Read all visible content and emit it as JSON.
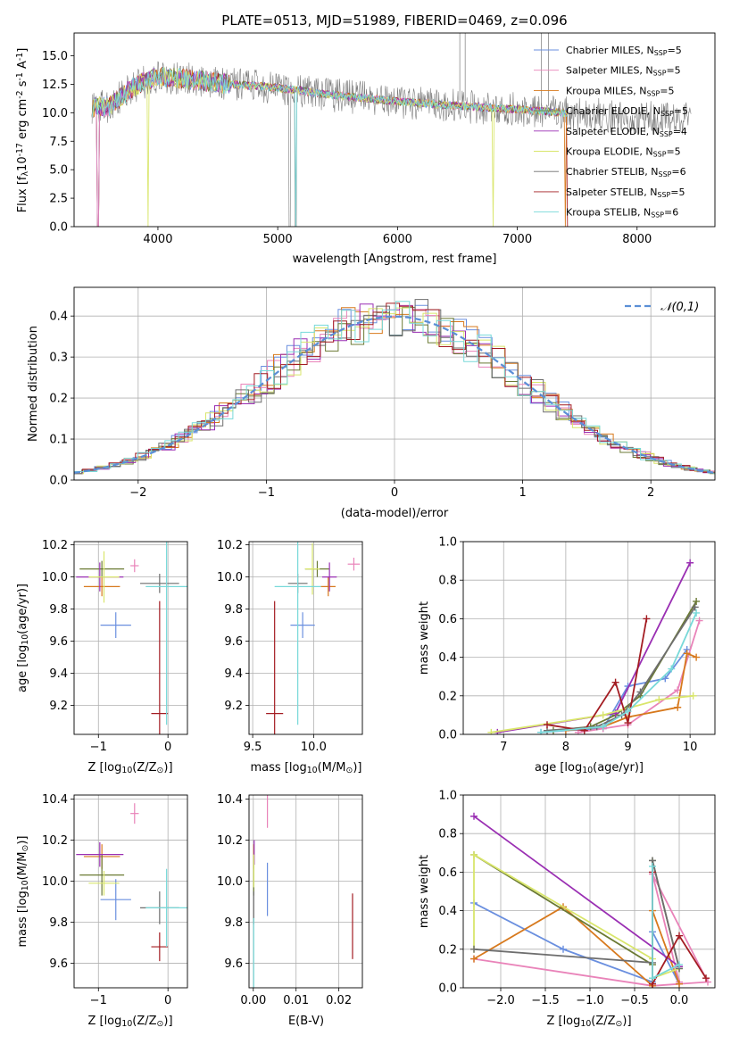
{
  "colors": [
    "#6a8fdf",
    "#e983b9",
    "#d7791d",
    "#6b7a34",
    "#9a2fb3",
    "#d9e66b",
    "#6e6e6e",
    "#a31c22",
    "#78d9d9"
  ],
  "chart_data": [
    {
      "id": "spectrum",
      "type": "line",
      "title": "PLATE=0513, MJD=51989, FIBERID=0469, z=0.096",
      "xlabel": "wavelength [Angstrom, rest frame]",
      "ylabel": "Flux [f$_{\\lambda}$10$^{-17}$ erg cm$^{-2}$ s$^{-1}$ A$^{-1}$]",
      "xlim": [
        3300,
        8650
      ],
      "ylim": [
        0,
        17
      ],
      "xticks": [
        "4000",
        "5000",
        "6000",
        "7000",
        "8000"
      ],
      "xtick_values": [
        4000,
        5000,
        6000,
        7000,
        8000
      ],
      "yticks": [
        "0.0",
        "2.5",
        "5.0",
        "7.5",
        "10.0",
        "12.5",
        "15.0"
      ],
      "ytick_values": [
        0,
        2.5,
        5,
        7.5,
        10,
        12.5,
        15
      ],
      "legend_position": "upper right",
      "legend": [
        {
          "label": "Chabrier MILES, N$_{SSP}$=5"
        },
        {
          "label": "Salpeter MILES, N$_{SSP}$=5"
        },
        {
          "label": "Kroupa MILES, N$_{SSP}$=5"
        },
        {
          "label": "Chabrier ELODIE, N$_{SSP}$=5"
        },
        {
          "label": "Salpeter ELODIE, N$_{SSP}$=4"
        },
        {
          "label": "Kroupa ELODIE, N$_{SSP}$=5"
        },
        {
          "label": "Chabrier STELIB, N$_{SSP}$=6"
        },
        {
          "label": "Salpeter STELIB, N$_{SSP}$=5"
        },
        {
          "label": "Kroupa STELIB, N$_{SSP}$=6"
        }
      ],
      "continuum": {
        "x": [
          3450,
          3600,
          3800,
          4000,
          4200,
          4500,
          5000,
          5500,
          6000,
          6500,
          7000,
          7500,
          8000,
          8450
        ],
        "y": [
          10.5,
          10.6,
          12.3,
          13.2,
          13.0,
          12.6,
          12.2,
          11.5,
          11.0,
          10.6,
          10.3,
          9.9,
          9.6,
          9.5
        ]
      }
    },
    {
      "id": "residuals",
      "type": "line",
      "xlabel": "(data-model)/error",
      "ylabel": "Normed distribution",
      "xlim": [
        -2.5,
        2.5
      ],
      "ylim": [
        0,
        0.47
      ],
      "xticks": [
        "−2",
        "−1",
        "0",
        "1",
        "2"
      ],
      "xtick_values": [
        -2,
        -1,
        0,
        1,
        2
      ],
      "yticks": [
        "0.0",
        "0.1",
        "0.2",
        "0.3",
        "0.4"
      ],
      "ytick_values": [
        0,
        0.1,
        0.2,
        0.3,
        0.4
      ],
      "legend_position": "upper right",
      "legend": [
        {
          "label": "$\\mathcal{N}(0,1)$"
        }
      ],
      "grid": true
    },
    {
      "id": "age-vs-Z",
      "type": "scatter",
      "xlabel": "Z [log$_{10}$(Z/Z$_\\odot$)]",
      "ylabel": "age  [log$_{10}$(age/yr)]",
      "xlim": [
        -1.35,
        0.28
      ],
      "ylim": [
        9.02,
        10.22
      ],
      "xticks": [
        "−1",
        "0"
      ],
      "xtick_values": [
        -1,
        0
      ],
      "yticks": [
        "9.2",
        "9.4",
        "9.6",
        "9.8",
        "10.0",
        "10.2"
      ],
      "ytick_values": [
        9.2,
        9.4,
        9.6,
        9.8,
        10.0,
        10.2
      ],
      "grid": true,
      "points": [
        {
          "x": -0.75,
          "y": 9.7,
          "xerr": 0.22,
          "yerr": 0.08
        },
        {
          "x": -0.48,
          "y": 10.07,
          "xerr": 0.06,
          "yerr": 0.04
        },
        {
          "x": -0.95,
          "y": 9.94,
          "xerr": 0.26,
          "yerr": 0.06
        },
        {
          "x": -0.95,
          "y": 10.05,
          "xerr": 0.32,
          "yerr": 0.05
        },
        {
          "x": -0.98,
          "y": 10.0,
          "xerr": 0.34,
          "yerr": 0.09
        },
        {
          "x": -0.92,
          "y": 10.0,
          "xerr": 0.22,
          "yerr": 0.16
        },
        {
          "x": -0.12,
          "y": 9.96,
          "xerr": 0.28,
          "yerr": 0.06
        },
        {
          "x": -0.12,
          "y": 9.15,
          "xerr": 0.12,
          "yerr": 0.7
        },
        {
          "x": -0.02,
          "y": 9.94,
          "xerr": 0.3,
          "yerr": 0.86
        }
      ]
    },
    {
      "id": "age-vs-mass",
      "type": "scatter",
      "xlabel": "mass [log$_{10}$(M/M$_\\odot$)]",
      "ylabel": "",
      "xlim": [
        9.47,
        10.4
      ],
      "ylim": [
        9.02,
        10.22
      ],
      "xticks": [
        "9.5",
        "10.0"
      ],
      "xtick_values": [
        9.5,
        10.0
      ],
      "yticks": [
        "9.2",
        "9.4",
        "9.6",
        "9.8",
        "10.0",
        "10.2"
      ],
      "ytick_values": [
        9.2,
        9.4,
        9.6,
        9.8,
        10.0,
        10.2
      ],
      "grid": true,
      "points": [
        {
          "x": 9.91,
          "y": 9.7,
          "xerr": 0.1,
          "yerr": 0.08
        },
        {
          "x": 10.33,
          "y": 10.08,
          "xerr": 0.05,
          "yerr": 0.04
        },
        {
          "x": 10.12,
          "y": 9.94,
          "xerr": 0.06,
          "yerr": 0.06
        },
        {
          "x": 10.03,
          "y": 10.05,
          "xerr": 0.1,
          "yerr": 0.05
        },
        {
          "x": 10.13,
          "y": 10.0,
          "xerr": 0.06,
          "yerr": 0.09
        },
        {
          "x": 9.99,
          "y": 10.05,
          "xerr": 0.06,
          "yerr": 0.16
        },
        {
          "x": 9.87,
          "y": 9.96,
          "xerr": 0.08,
          "yerr": 0.06
        },
        {
          "x": 9.68,
          "y": 9.15,
          "xerr": 0.07,
          "yerr": 0.7
        },
        {
          "x": 9.87,
          "y": 9.94,
          "xerr": 0.19,
          "yerr": 0.86
        }
      ]
    },
    {
      "id": "massweight-vs-age",
      "type": "line",
      "xlabel": "age  [log$_{10}$(age/yr)]",
      "ylabel": "mass weight",
      "xlim": [
        6.35,
        10.4
      ],
      "ylim": [
        0,
        1.0
      ],
      "xticks": [
        "7",
        "8",
        "9",
        "10"
      ],
      "xtick_values": [
        7,
        8,
        9,
        10
      ],
      "yticks": [
        "0.0",
        "0.2",
        "0.4",
        "0.6",
        "0.8",
        "1.0"
      ],
      "ytick_values": [
        0,
        0.2,
        0.4,
        0.6,
        0.8,
        1.0
      ],
      "grid": true,
      "series": [
        {
          "x": [
            7.6,
            8.0,
            8.6,
            9.0,
            9.6,
            9.95
          ],
          "y": [
            0.01,
            0.02,
            0.03,
            0.25,
            0.29,
            0.44
          ]
        },
        {
          "x": [
            8.2,
            8.6,
            9.0,
            9.8,
            10.15
          ],
          "y": [
            0.01,
            0.03,
            0.05,
            0.23,
            0.59
          ]
        },
        {
          "x": [
            8.0,
            8.6,
            9.0,
            9.8,
            9.95,
            10.1
          ],
          "y": [
            0.02,
            0.04,
            0.09,
            0.14,
            0.42,
            0.4
          ]
        },
        {
          "x": [
            7.8,
            8.4,
            8.8,
            9.2,
            10.1
          ],
          "y": [
            0.02,
            0.04,
            0.1,
            0.2,
            0.69
          ]
        },
        {
          "x": [
            6.9,
            8.8,
            10.0
          ],
          "y": [
            0.01,
            0.11,
            0.89
          ]
        },
        {
          "x": [
            6.8,
            8.6,
            9.5,
            10.05
          ],
          "y": [
            0.01,
            0.1,
            0.18,
            0.2
          ]
        },
        {
          "x": [
            7.7,
            8.5,
            8.9,
            9.2,
            10.08
          ],
          "y": [
            0.02,
            0.04,
            0.1,
            0.22,
            0.66
          ]
        },
        {
          "x": [
            7.7,
            8.3,
            8.8,
            9.0,
            9.3
          ],
          "y": [
            0.05,
            0.02,
            0.27,
            0.06,
            0.6
          ]
        },
        {
          "x": [
            7.6,
            8.6,
            9.0,
            9.7,
            10.1
          ],
          "y": [
            0.01,
            0.04,
            0.12,
            0.34,
            0.63
          ]
        }
      ]
    },
    {
      "id": "mass-vs-Z",
      "type": "scatter",
      "xlabel": "Z [log$_{10}$(Z/Z$_\\odot$)]",
      "ylabel": "mass [log$_{10}$(M/M$_\\odot$)]",
      "xlim": [
        -1.35,
        0.28
      ],
      "ylim": [
        9.48,
        10.42
      ],
      "xticks": [
        "−1",
        "0"
      ],
      "xtick_values": [
        -1,
        0
      ],
      "yticks": [
        "9.6",
        "9.8",
        "10.0",
        "10.2",
        "10.4"
      ],
      "ytick_values": [
        9.6,
        9.8,
        10.0,
        10.2,
        10.4
      ],
      "grid": true,
      "points": [
        {
          "x": -0.75,
          "y": 9.91,
          "xerr": 0.22,
          "yerr": 0.1
        },
        {
          "x": -0.48,
          "y": 10.33,
          "xerr": 0.06,
          "yerr": 0.05
        },
        {
          "x": -0.95,
          "y": 10.12,
          "xerr": 0.26,
          "yerr": 0.06
        },
        {
          "x": -0.95,
          "y": 10.03,
          "xerr": 0.32,
          "yerr": 0.1
        },
        {
          "x": -0.98,
          "y": 10.13,
          "xerr": 0.34,
          "yerr": 0.06
        },
        {
          "x": -0.92,
          "y": 9.99,
          "xerr": 0.22,
          "yerr": 0.06
        },
        {
          "x": -0.12,
          "y": 9.87,
          "xerr": 0.28,
          "yerr": 0.08
        },
        {
          "x": -0.12,
          "y": 9.68,
          "xerr": 0.12,
          "yerr": 0.07
        },
        {
          "x": -0.02,
          "y": 9.87,
          "xerr": 0.3,
          "yerr": 0.19
        }
      ]
    },
    {
      "id": "mass-vs-EBV",
      "type": "scatter",
      "xlabel": "E(B-V)",
      "ylabel": "",
      "xlim": [
        -0.001,
        0.0255
      ],
      "ylim": [
        9.48,
        10.42
      ],
      "xticks": [
        "0.00",
        "0.01",
        "0.02"
      ],
      "xtick_values": [
        0,
        0.01,
        0.02
      ],
      "yticks": [
        "9.6",
        "9.8",
        "10.0",
        "10.2",
        "10.4"
      ],
      "ytick_values": [
        9.6,
        9.8,
        10.0,
        10.2,
        10.4
      ],
      "grid": true,
      "points": [
        {
          "x": 0.0033,
          "y": 9.96,
          "xerr": 0,
          "yerr": 0.13
        },
        {
          "x": 0.0033,
          "y": 10.34,
          "xerr": 0,
          "yerr": 0.08
        },
        {
          "x": 0.0001,
          "y": 10.12,
          "xerr": 0,
          "yerr": 0.06
        },
        {
          "x": 0.0001,
          "y": 10.03,
          "xerr": 0,
          "yerr": 0.1
        },
        {
          "x": 0.0002,
          "y": 10.14,
          "xerr": 0,
          "yerr": 0.06
        },
        {
          "x": 0.0001,
          "y": 10.05,
          "xerr": 0,
          "yerr": 0.08
        },
        {
          "x": 0.0001,
          "y": 9.87,
          "xerr": 0,
          "yerr": 0.08
        },
        {
          "x": 0.0232,
          "y": 9.78,
          "xerr": 0,
          "yerr": 0.16
        },
        {
          "x": 0.0001,
          "y": 9.62,
          "xerr": 0,
          "yerr": 0.2
        }
      ]
    },
    {
      "id": "massweight-vs-Z",
      "type": "line",
      "xlabel": "Z [log$_{10}$(Z/Z$_\\odot$)]",
      "ylabel": "mass weight",
      "xlim": [
        -2.42,
        0.4
      ],
      "ylim": [
        0,
        1.0
      ],
      "xticks": [
        "−2.0",
        "−1.5",
        "−1.0",
        "−0.5",
        "0.0"
      ],
      "xtick_values": [
        -2,
        -1.5,
        -1,
        -0.5,
        0
      ],
      "yticks": [
        "0.0",
        "0.2",
        "0.4",
        "0.6",
        "0.8",
        "1.0"
      ],
      "ytick_values": [
        0,
        0.2,
        0.4,
        0.6,
        0.8,
        1.0
      ],
      "grid": true,
      "series": [
        {
          "x": [
            -2.3,
            -1.3,
            -0.3,
            -0.3,
            0.0
          ],
          "y": [
            0.44,
            0.2,
            0.03,
            0.29,
            0.02
          ]
        },
        {
          "x": [
            -2.3,
            -0.3,
            0.32,
            -0.3,
            0.0
          ],
          "y": [
            0.15,
            0.01,
            0.03,
            0.59,
            0.03
          ]
        },
        {
          "x": [
            -2.3,
            -1.3,
            -0.3,
            -0.3,
            0.0
          ],
          "y": [
            0.15,
            0.42,
            0.01,
            0.4,
            0.02
          ]
        },
        {
          "x": [
            -2.3,
            -0.3,
            -0.3,
            0.0
          ],
          "y": [
            0.69,
            0.12,
            0.66,
            0.1
          ]
        },
        {
          "x": [
            -2.3,
            0.0
          ],
          "y": [
            0.89,
            0.11
          ]
        },
        {
          "x": [
            -2.3,
            -2.3,
            -0.3,
            -0.3,
            0.0
          ],
          "y": [
            0.2,
            0.69,
            0.15,
            0.05,
            0.1
          ]
        },
        {
          "x": [
            -2.3,
            -0.3,
            -0.3,
            0.0
          ],
          "y": [
            0.2,
            0.13,
            0.66,
            0.1
          ]
        },
        {
          "x": [
            -0.3,
            -0.3,
            0.0,
            0.3
          ],
          "y": [
            0.6,
            0.02,
            0.27,
            0.05
          ]
        },
        {
          "x": [
            -0.3,
            -0.3,
            0.0
          ],
          "y": [
            0.63,
            0.05,
            0.12
          ]
        }
      ]
    }
  ]
}
